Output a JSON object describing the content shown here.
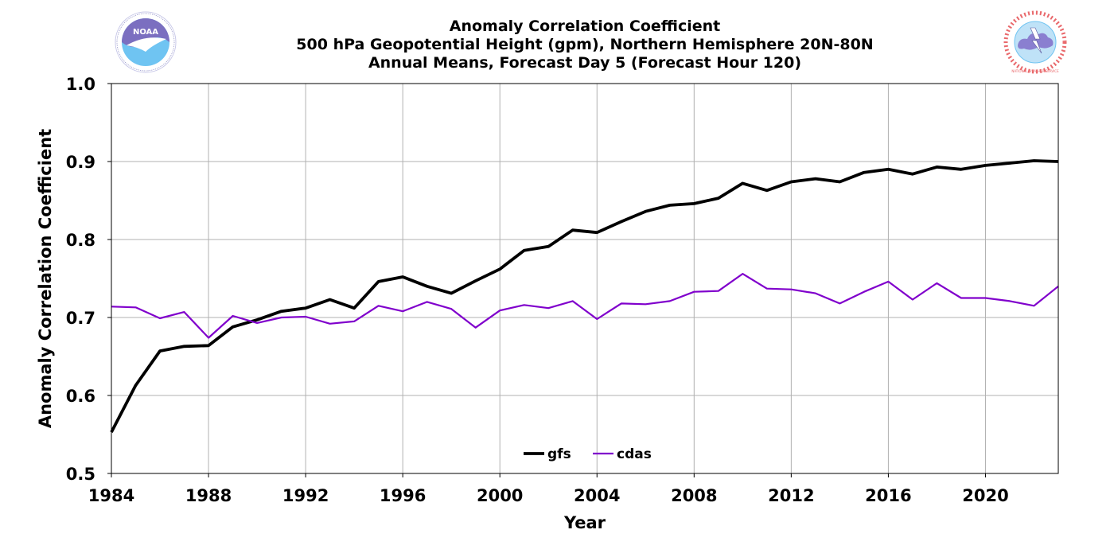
{
  "colors": {
    "gfs": "#000000",
    "cdas": "#8000cc",
    "grid": "#b0b0b0",
    "noaa_blue": "#6fc4f2",
    "noaa_purple": "#7b6fc0",
    "nws_red": "#e9686b"
  },
  "logos": {
    "left": "noaa-logo",
    "right": "nws-logo",
    "left_text": "NOAA",
    "right_text": "NATIONAL WEATHER SERVICE"
  },
  "chart_data": {
    "type": "line",
    "title_lines": [
      "Anomaly Correlation Coefficient",
      "500 hPa Geopotential Height (gpm), Northern Hemisphere 20N-80N",
      "Annual Means, Forecast Day 5 (Forecast Hour 120)"
    ],
    "xlabel": "Year",
    "ylabel": "Anomaly Correlation Coefficient",
    "xlim": [
      1984,
      2023
    ],
    "ylim": [
      0.5,
      1.0
    ],
    "x_ticks": [
      1984,
      1988,
      1992,
      1996,
      2000,
      2004,
      2008,
      2012,
      2016,
      2020
    ],
    "y_ticks": [
      "0.5",
      "0.6",
      "0.7",
      "0.8",
      "0.9",
      "1.0"
    ],
    "grid": true,
    "legend": {
      "placement": "bottom-center",
      "entries": [
        "gfs",
        "cdas"
      ]
    },
    "x": [
      1984,
      1985,
      1986,
      1987,
      1988,
      1989,
      1990,
      1991,
      1992,
      1993,
      1994,
      1995,
      1996,
      1997,
      1998,
      1999,
      2000,
      2001,
      2002,
      2003,
      2004,
      2005,
      2006,
      2007,
      2008,
      2009,
      2010,
      2011,
      2012,
      2013,
      2014,
      2015,
      2016,
      2017,
      2018,
      2019,
      2020,
      2021,
      2022,
      2023
    ],
    "series": [
      {
        "name": "gfs",
        "line": "thick",
        "values": [
          0.553,
          0.613,
          0.657,
          0.663,
          0.664,
          0.688,
          0.697,
          0.708,
          0.712,
          0.723,
          0.712,
          0.746,
          0.752,
          0.74,
          0.731,
          0.747,
          0.762,
          0.786,
          0.791,
          0.812,
          0.809,
          0.823,
          0.836,
          0.844,
          0.846,
          0.853,
          0.872,
          0.863,
          0.874,
          0.878,
          0.874,
          0.886,
          0.89,
          0.884,
          0.893,
          0.89,
          0.895,
          0.898,
          0.901,
          0.9
        ]
      },
      {
        "name": "cdas",
        "line": "thin",
        "values": [
          0.714,
          0.713,
          0.699,
          0.707,
          0.674,
          0.702,
          0.693,
          0.7,
          0.701,
          0.692,
          0.695,
          0.715,
          0.708,
          0.72,
          0.711,
          0.687,
          0.709,
          0.716,
          0.712,
          0.721,
          0.698,
          0.718,
          0.717,
          0.721,
          0.733,
          0.734,
          0.756,
          0.737,
          0.736,
          0.731,
          0.718,
          0.733,
          0.746,
          0.723,
          0.744,
          0.725,
          0.725,
          0.721,
          0.715,
          0.74
        ]
      }
    ]
  }
}
